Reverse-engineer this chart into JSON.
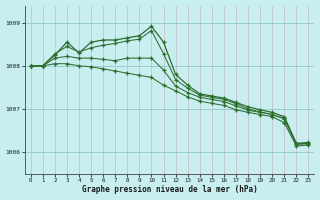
{
  "title": "Graphe pression niveau de la mer (hPa)",
  "background_color": "#c8eef0",
  "grid_color_v": "#c0c0d0",
  "grid_color_h": "#a8d8dc",
  "line_color": "#2d6e2d",
  "xlim": [
    -0.5,
    23.5
  ],
  "ylim": [
    1005.5,
    1009.4
  ],
  "yticks": [
    1006,
    1007,
    1008,
    1009
  ],
  "xticks": [
    0,
    1,
    2,
    3,
    4,
    5,
    6,
    7,
    8,
    9,
    10,
    11,
    12,
    13,
    14,
    15,
    16,
    17,
    18,
    19,
    20,
    21,
    22,
    23
  ],
  "series": [
    [
      1008.0,
      1008.0,
      1008.25,
      1008.55,
      1008.3,
      1008.55,
      1008.6,
      1008.6,
      1008.65,
      1008.7,
      1008.92,
      1008.55,
      1007.8,
      1007.55,
      1007.35,
      1007.3,
      1007.25,
      1007.15,
      1007.05,
      1006.98,
      1006.92,
      1006.82,
      1006.2,
      1006.22
    ],
    [
      1008.0,
      1008.0,
      1008.28,
      1008.45,
      1008.32,
      1008.42,
      1008.48,
      1008.52,
      1008.58,
      1008.62,
      1008.82,
      1008.28,
      1007.68,
      1007.48,
      1007.32,
      1007.27,
      1007.22,
      1007.12,
      1007.0,
      1006.93,
      1006.87,
      1006.78,
      1006.19,
      1006.2
    ],
    [
      1008.0,
      1008.0,
      1008.18,
      1008.22,
      1008.18,
      1008.18,
      1008.15,
      1008.12,
      1008.18,
      1008.18,
      1008.18,
      1007.9,
      1007.53,
      1007.38,
      1007.27,
      1007.22,
      1007.17,
      1007.07,
      1006.97,
      1006.92,
      1006.87,
      1006.77,
      1006.18,
      1006.19
    ],
    [
      1008.0,
      1008.0,
      1008.05,
      1008.05,
      1008.0,
      1007.98,
      1007.93,
      1007.88,
      1007.83,
      1007.78,
      1007.73,
      1007.55,
      1007.42,
      1007.28,
      1007.18,
      1007.13,
      1007.08,
      1006.98,
      1006.92,
      1006.87,
      1006.82,
      1006.68,
      1006.14,
      1006.16
    ]
  ]
}
